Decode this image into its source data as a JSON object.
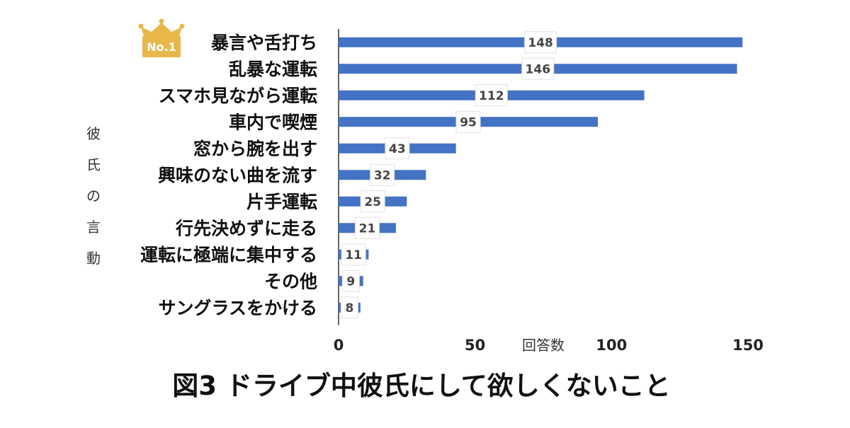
{
  "chart_data": {
    "type": "bar",
    "orientation": "horizontal",
    "title": "図3 ドライブ中彼氏にして欲しくないこと",
    "xlabel": "回答数",
    "ylabel": "彼氏の言動",
    "categories": [
      "暴言や舌打ち",
      "乱暴な運転",
      "スマホ見ながら運転",
      "車内で喫煙",
      "窓から腕を出す",
      "興味のない曲を流す",
      "片手運転",
      "行先決めずに走る",
      "運転に極端に集中する",
      "その他",
      "サングラスをかける"
    ],
    "values": [
      148,
      146,
      112,
      95,
      43,
      32,
      25,
      21,
      11,
      9,
      8
    ],
    "xlim": [
      0,
      150
    ],
    "xticks": [
      0,
      50,
      100,
      150
    ],
    "grid": false,
    "legend": "none",
    "bar_color": "#4472C4",
    "badge": {
      "text": "No.1",
      "icon": "crown-icon",
      "color": "#E8B84A",
      "attached_to": "暴言や舌打ち"
    }
  }
}
